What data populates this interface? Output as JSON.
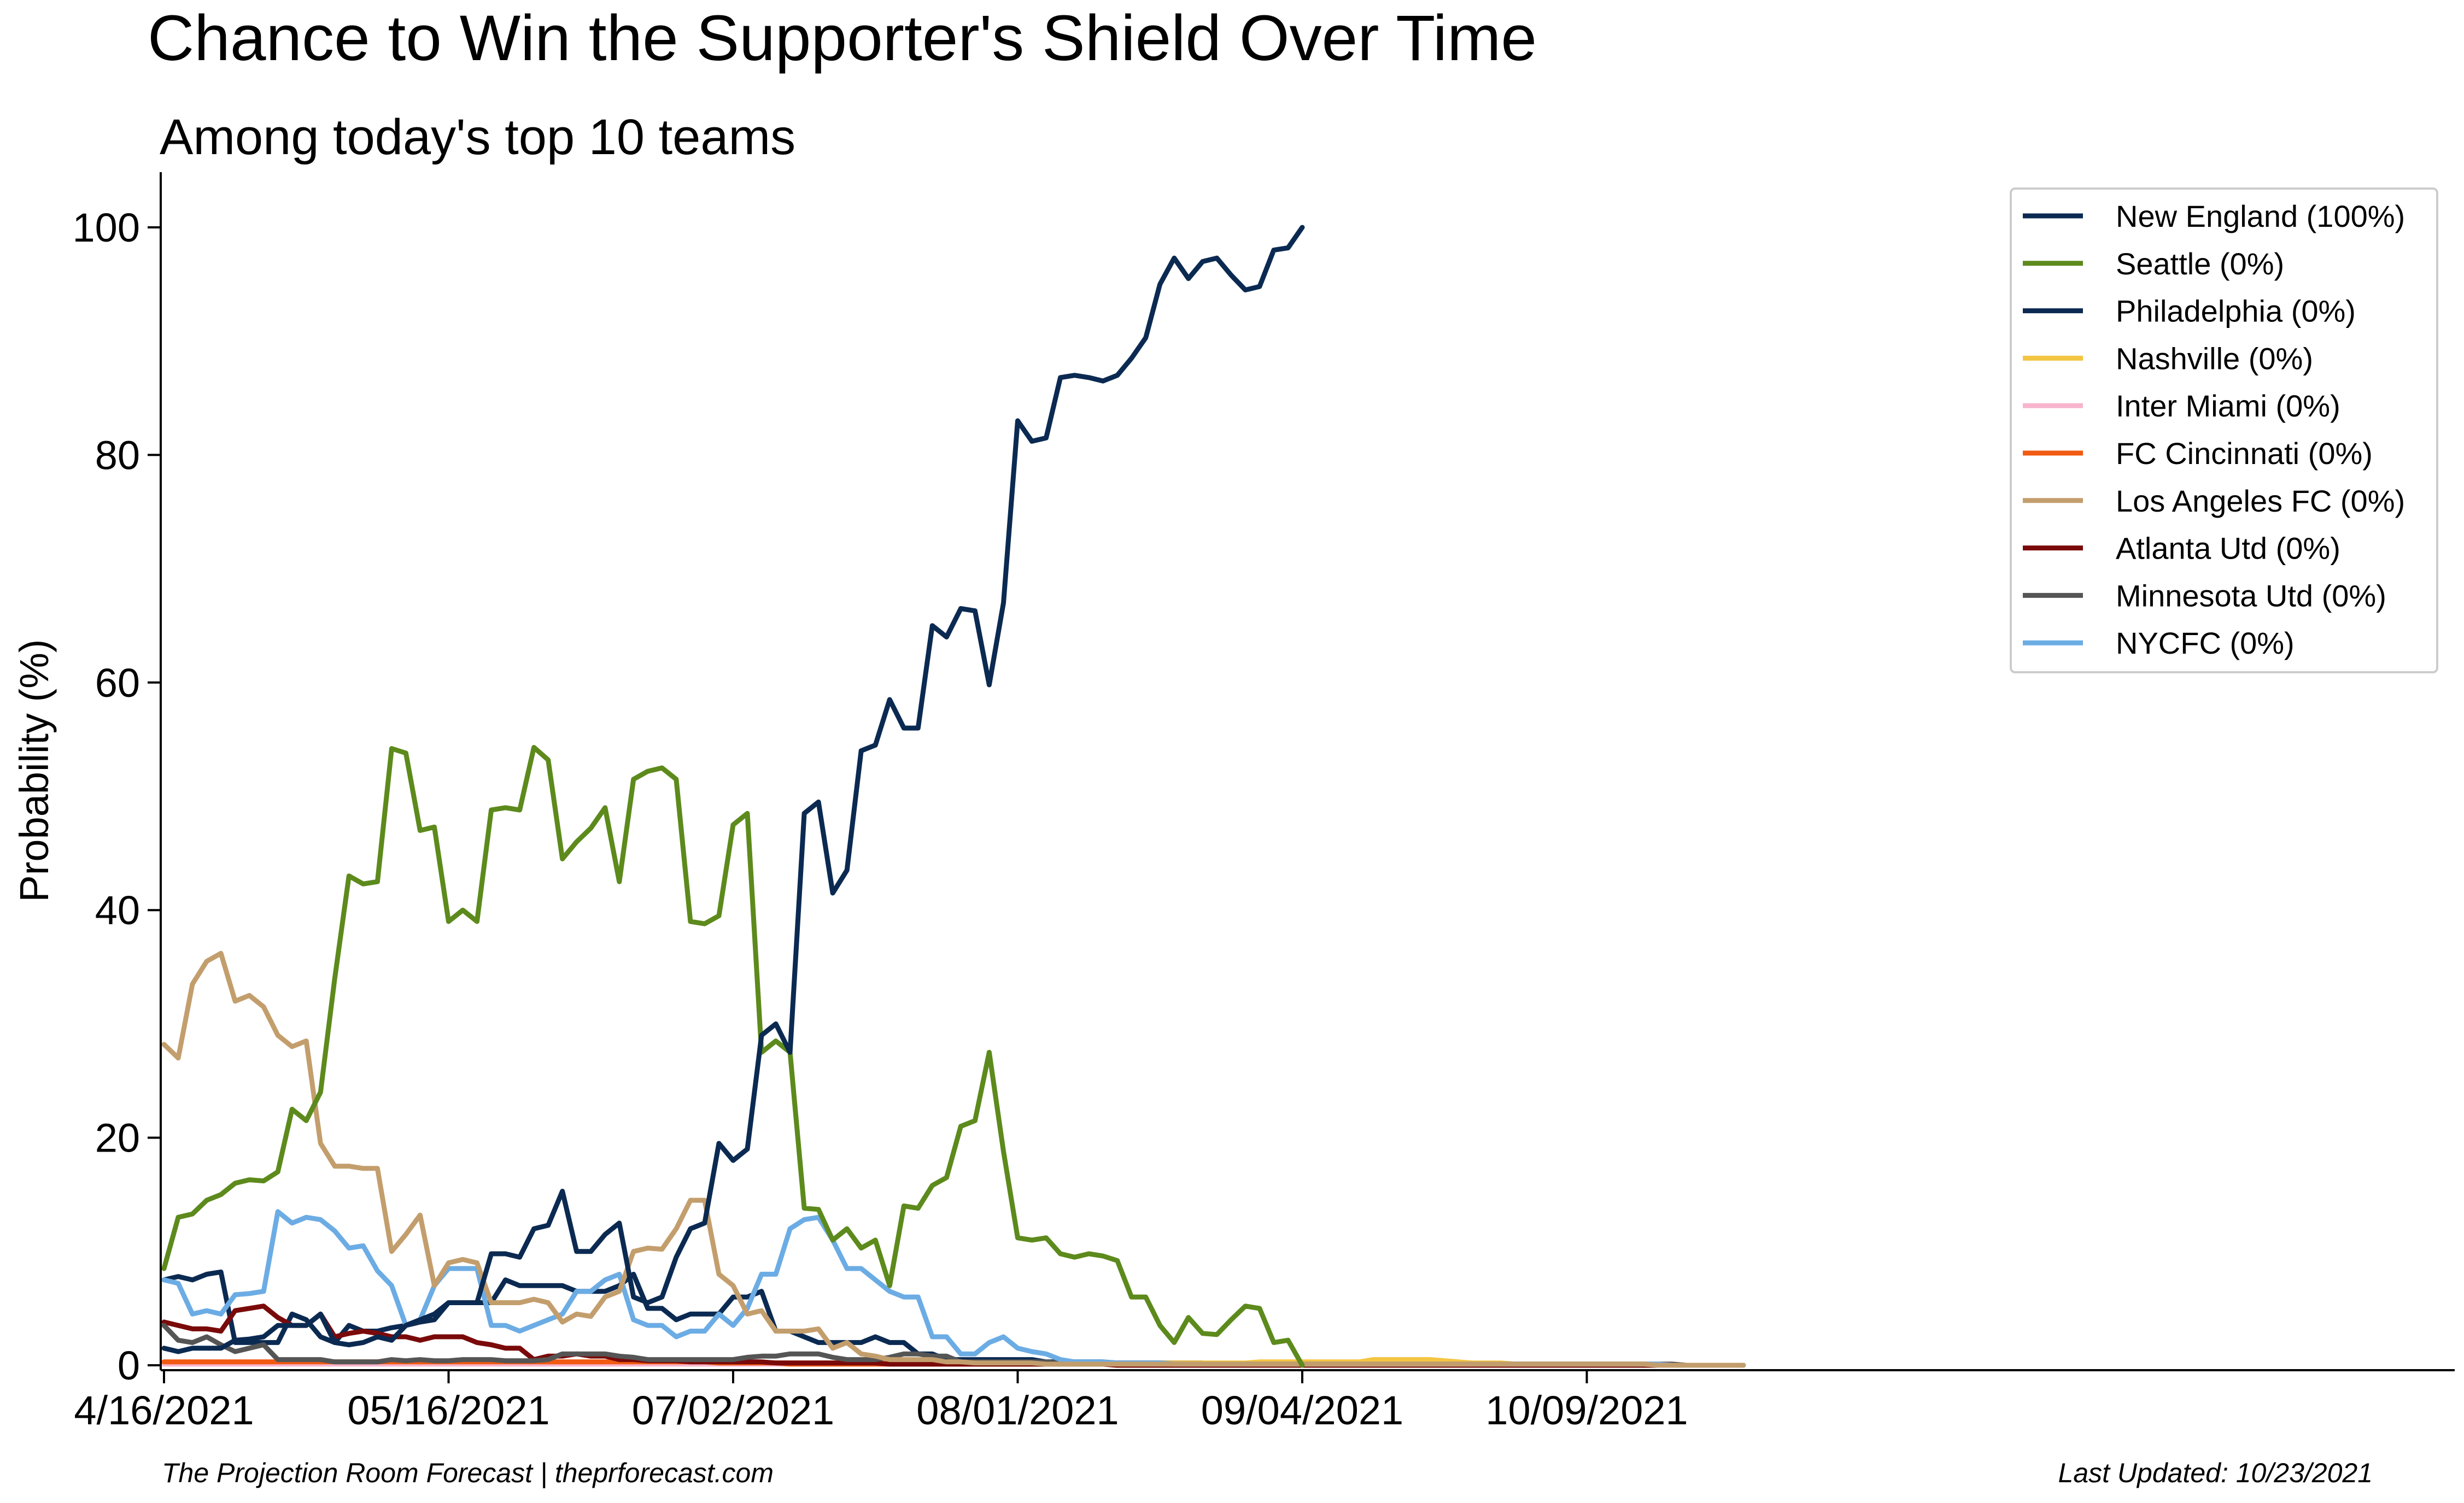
{
  "title": "Chance to Win the Supporter's Shield Over Time",
  "subtitle": "Among today's top 10 teams",
  "footer_left": "The Projection Room Forecast | theprforecast.com",
  "footer_right": "Last Updated: 10/23/2021",
  "chart_data": {
    "type": "line",
    "ylabel": "Probability (%)",
    "xlabel": "",
    "ylim": [
      0,
      105
    ],
    "y_ticks": [
      0,
      20,
      40,
      60,
      80,
      100
    ],
    "x_index_range": [
      0,
      161
    ],
    "x_ticks": [
      {
        "index": 0,
        "label": "4/16/2021"
      },
      {
        "index": 20,
        "label": "05/16/2021"
      },
      {
        "index": 40,
        "label": "07/02/2021"
      },
      {
        "index": 60,
        "label": "08/01/2021"
      },
      {
        "index": 80,
        "label": "09/04/2021"
      },
      {
        "index": 100,
        "label": "10/09/2021"
      }
    ],
    "grid": false,
    "legend_position": "top-right",
    "series": [
      {
        "name": "Philadelphia (0%)",
        "color": "#0b2a52",
        "values": [
          7.5,
          7.8,
          7.5,
          8,
          8.2,
          2,
          2,
          2,
          2,
          4.5,
          4,
          2.5,
          2,
          3.5,
          3,
          3,
          3.3,
          3.5,
          3.8,
          4,
          5.5,
          5.5,
          5.5,
          5.5,
          7.5,
          7,
          7,
          7,
          7,
          6.5,
          6.5,
          6.5,
          7,
          8,
          5,
          5,
          4,
          4.5,
          4.5,
          4.5,
          6,
          6,
          6.5,
          3,
          3,
          2.5,
          2,
          2,
          2,
          2,
          2.5,
          2,
          2,
          1,
          1,
          0.5,
          0.5,
          0.5,
          0.5,
          0.5,
          0.5,
          0.5,
          0.3,
          0.3,
          0.3,
          0.3,
          0.3,
          0.2,
          0.2,
          0.2,
          0.2,
          0.2,
          0.2,
          0.2,
          0.1,
          0.1,
          0.1,
          0.1,
          0.1,
          0.1,
          0.1,
          0.1,
          0.1,
          0.1,
          0.1,
          0.1,
          0.1,
          0.1,
          0.1,
          0.1,
          0.1,
          0.1,
          0.1,
          0.1,
          0.1,
          0.1,
          0.1,
          0.1,
          0.1,
          0.1,
          0.1,
          0.1,
          0.1,
          0.1,
          0.1,
          0,
          0,
          0,
          0,
          0
        ]
      },
      {
        "name": "Nashville (0%)",
        "color": "#f4c542",
        "values": [
          0.2,
          0.2,
          0.2,
          0.2,
          0.2,
          0.2,
          0.2,
          0.2,
          0.2,
          0.2,
          0.2,
          0.2,
          0.2,
          0.2,
          0.2,
          0.2,
          0.2,
          0.2,
          0.2,
          0.2,
          0.2,
          0.2,
          0.2,
          0.2,
          0.2,
          0.2,
          0.2,
          0.2,
          0.2,
          0.2,
          0.2,
          0.2,
          0.2,
          0.2,
          0.2,
          0.2,
          0.2,
          0.2,
          0.2,
          0.2,
          0.2,
          0.2,
          0.2,
          0.2,
          0.2,
          0.2,
          0.2,
          0.2,
          0.2,
          0.2,
          0.2,
          0.2,
          0.2,
          0.2,
          0.2,
          0.2,
          0.2,
          0.2,
          0.2,
          0.2,
          0.2,
          0.2,
          0.2,
          0.2,
          0.2,
          0.2,
          0.2,
          0.2,
          0.2,
          0.2,
          0.2,
          0.2,
          0.2,
          0.2,
          0.2,
          0.2,
          0.2,
          0.3,
          0.3,
          0.3,
          0.3,
          0.3,
          0.3,
          0.3,
          0.3,
          0.5,
          0.5,
          0.5,
          0.5,
          0.5,
          0.4,
          0.3,
          0.2,
          0.2,
          0.2,
          0.1,
          0.1,
          0.1,
          0.1,
          0.1,
          0.1,
          0.1,
          0.1,
          0.1,
          0.1,
          0.1,
          0.1,
          0,
          0,
          0,
          0,
          0
        ]
      },
      {
        "name": "Inter Miami (0%)",
        "color": "#f7b5cd",
        "values": [
          0.1,
          0.1,
          0.1,
          0.1,
          0.1,
          0.1,
          0.1,
          0.1,
          0.1,
          0.1,
          0.1,
          0.1,
          0.1,
          0.1,
          0.1,
          0.1,
          0.1,
          0.1,
          0.1,
          0.1,
          0.1,
          0.1,
          0.1,
          0.1,
          0.1,
          0.1,
          0.1,
          0.1,
          0.1,
          0.1,
          0.1,
          0.1,
          0.1,
          0.1,
          0.1,
          0.1,
          0.1,
          0.1,
          0.1,
          0.1,
          0.1,
          0.1,
          0.1,
          0.1,
          0.1,
          0.1,
          0.1,
          0.1,
          0.1,
          0.1,
          0.1,
          0.1,
          0.1,
          0.1,
          0.1,
          0.1,
          0.1,
          0.1,
          0.1,
          0.1,
          0.1,
          0.1,
          0.1,
          0.1,
          0.1,
          0.1,
          0.1,
          0.1,
          0.1,
          0.1,
          0.1,
          0.1,
          0.1,
          0.1,
          0.1,
          0.1,
          0.1,
          0.1,
          0.1,
          0.1,
          0.1,
          0.1,
          0.1,
          0.1,
          0.1,
          0.1,
          0.1,
          0.1,
          0.1,
          0.1,
          0.1,
          0.1,
          0.1,
          0.1,
          0.1,
          0.1,
          0.1,
          0.1,
          0.1,
          0.1,
          0.1,
          0.1,
          0.1,
          0.1,
          0.1,
          0.1,
          0.1,
          0,
          0,
          0,
          0,
          0
        ]
      },
      {
        "name": "FC Cincinnati (0%)",
        "color": "#f05a12",
        "values": [
          0.3,
          0.3,
          0.3,
          0.3,
          0.3,
          0.3,
          0.3,
          0.3,
          0.3,
          0.3,
          0.3,
          0.3,
          0.3,
          0.3,
          0.3,
          0.3,
          0.3,
          0.3,
          0.3,
          0.3,
          0.3,
          0.3,
          0.3,
          0.3,
          0.3,
          0.3,
          0.3,
          0.3,
          0.3,
          0.3,
          0.3,
          0.3,
          0.3,
          0.3,
          0.3,
          0.3,
          0.3,
          0.3,
          0.3,
          0.2,
          0.2,
          0.2,
          0.2,
          0.2,
          0.1,
          0.1,
          0.1,
          0.1,
          0.1,
          0.1,
          0.1,
          0.1,
          0.1,
          0.1,
          0.1,
          0.1,
          0.1,
          0.1,
          0.1,
          0.1,
          0.1,
          0.1,
          0.1,
          0.1,
          0.1,
          0.1,
          0.1,
          0,
          0,
          0,
          0,
          0,
          0,
          0,
          0,
          0,
          0,
          0,
          0,
          0,
          0,
          0,
          0,
          0,
          0,
          0,
          0,
          0,
          0,
          0,
          0,
          0,
          0,
          0,
          0,
          0,
          0,
          0,
          0,
          0,
          0,
          0,
          0,
          0,
          0,
          0,
          0,
          0,
          0,
          0,
          0,
          0
        ]
      },
      {
        "name": "Atlanta Utd (0%)",
        "color": "#7a0a0a",
        "values": [
          3.8,
          3.5,
          3.2,
          3.2,
          3,
          4.8,
          5,
          5.2,
          4.2,
          3.5,
          3.5,
          4.5,
          2.5,
          2.8,
          3,
          2.8,
          2.5,
          2.5,
          2.2,
          2.5,
          2.5,
          2.5,
          2,
          1.8,
          1.5,
          1.5,
          0.5,
          0.8,
          0.8,
          1,
          0.8,
          0.8,
          0.5,
          0.5,
          0.4,
          0.4,
          0.4,
          0.3,
          0.3,
          0.3,
          0.3,
          0.3,
          0.3,
          0.2,
          0.2,
          0.2,
          0.2,
          0.2,
          0.2,
          0.2,
          0.2,
          0.1,
          0.1,
          0.1,
          0.1,
          0.1,
          0.1,
          0.1,
          0.1,
          0.1,
          0.1,
          0.1,
          0.1,
          0.1,
          0.1,
          0.1,
          0.1,
          0,
          0,
          0,
          0,
          0,
          0,
          0,
          0,
          0,
          0,
          0,
          0,
          0,
          0,
          0,
          0,
          0,
          0,
          0,
          0,
          0,
          0,
          0,
          0,
          0,
          0,
          0,
          0,
          0,
          0,
          0,
          0,
          0,
          0,
          0,
          0,
          0,
          0,
          0,
          0,
          0,
          0,
          0,
          0,
          0
        ]
      },
      {
        "name": "Minnesota Utd (0%)",
        "color": "#555555",
        "values": [
          3.5,
          2.2,
          2.0,
          2.5,
          1.8,
          1.2,
          1.5,
          1.8,
          0.5,
          0.5,
          0.5,
          0.5,
          0.3,
          0.3,
          0.3,
          0.3,
          0.5,
          0.4,
          0.5,
          0.4,
          0.4,
          0.5,
          0.5,
          0.5,
          0.4,
          0.4,
          0.4,
          0.5,
          1,
          1,
          1,
          1,
          0.8,
          0.7,
          0.5,
          0.5,
          0.5,
          0.5,
          0.5,
          0.5,
          0.5,
          0.7,
          0.8,
          0.8,
          1,
          1,
          1,
          0.7,
          0.5,
          0.5,
          0.5,
          0.7,
          1,
          1,
          0.8,
          0.8,
          0.3,
          0.3,
          0.3,
          0.3,
          0.3,
          0.3,
          0.3,
          0.2,
          0.2,
          0.2,
          0.2,
          0.2,
          0.2,
          0.2,
          0.2,
          0.1,
          0.1,
          0.1,
          0.1,
          0.1,
          0.1,
          0.1,
          0.1,
          0.1,
          0.1,
          0.1,
          0.1,
          0.1,
          0.1,
          0.1,
          0.1,
          0.1,
          0.1,
          0.1,
          0.1,
          0.1,
          0.1,
          0.1,
          0.1,
          0.1,
          0.1,
          0.1,
          0.1,
          0.1,
          0.1,
          0.1,
          0.1,
          0.1,
          0.1,
          0.1,
          0.1,
          0,
          0,
          0,
          0,
          0
        ]
      },
      {
        "name": "NYCFC (0%)",
        "color": "#6cace4",
        "values": [
          7.5,
          7.2,
          4.5,
          4.8,
          4.5,
          6.2,
          6.3,
          6.5,
          13.5,
          12.5,
          13,
          12.8,
          11.8,
          10.3,
          10.5,
          8.3,
          7,
          3.5,
          4,
          7,
          8.5,
          8.5,
          8.5,
          3.5,
          3.5,
          3,
          3.5,
          4,
          4.5,
          6.5,
          6.5,
          7.5,
          8,
          4,
          3.5,
          3.5,
          2.5,
          3,
          3,
          4.5,
          3.5,
          5,
          8,
          8,
          12,
          12.8,
          13,
          11,
          8.5,
          8.5,
          7.5,
          6.5,
          6,
          6,
          2.5,
          2.5,
          1,
          1,
          2,
          2.5,
          1.5,
          1.2,
          1,
          0.5,
          0.3,
          0.3,
          0.3,
          0.2,
          0.2,
          0.2,
          0.2,
          0.1,
          0.1,
          0.1,
          0.1,
          0.1,
          0.1,
          0.1,
          0.1,
          0.1,
          0.1,
          0.1,
          0.1,
          0.1,
          0.1,
          0.1,
          0.1,
          0.1,
          0.1,
          0.1,
          0.1,
          0.1,
          0.1,
          0.1,
          0.1,
          0.1,
          0.1,
          0.1,
          0.1,
          0.1,
          0.1,
          0.1,
          0.1,
          0.1,
          0.1,
          0.1,
          0,
          0,
          0,
          0,
          0,
          0
        ]
      },
      {
        "name": "Los Angeles FC (0%)",
        "color": "#c39e6d",
        "values": [
          28.2,
          27,
          33.5,
          35.5,
          36.2,
          32,
          32.5,
          31.5,
          29,
          28,
          28.5,
          19.5,
          17.5,
          17.5,
          17.3,
          17.3,
          10,
          11.5,
          13.2,
          7,
          9,
          9.3,
          9,
          5.5,
          5.5,
          5.5,
          5.8,
          5.5,
          3.8,
          4.5,
          4.3,
          6,
          6.5,
          10,
          10.3,
          10.2,
          12,
          14.5,
          14.5,
          8,
          7,
          4.5,
          4.8,
          3,
          3,
          3,
          3.2,
          1.5,
          2,
          1,
          0.8,
          0.5,
          0.5,
          0.5,
          0.5,
          0.3,
          0.3,
          0.2,
          0.2,
          0.2,
          0.2,
          0.2,
          0.1,
          0.1,
          0.1,
          0.1,
          0.1,
          0.1,
          0.1,
          0.1,
          0.1,
          0.1,
          0.1,
          0.1,
          0.1,
          0.1,
          0.1,
          0.1,
          0.1,
          0.1,
          0.1,
          0.1,
          0.1,
          0.1,
          0.1,
          0.1,
          0.1,
          0.1,
          0.1,
          0.1,
          0.1,
          0.1,
          0.1,
          0.1,
          0.1,
          0.1,
          0.1,
          0.1,
          0.1,
          0.1,
          0.1,
          0.1,
          0.1,
          0.1,
          0.1,
          0,
          0,
          0,
          0,
          0,
          0,
          0
        ]
      },
      {
        "name": "Seattle (0%)",
        "color": "#5d8a1c",
        "values": [
          8.5,
          13,
          13.3,
          14.5,
          15,
          16,
          16.3,
          16.2,
          17,
          22.5,
          21.5,
          24,
          34,
          43,
          42.3,
          42.5,
          54.2,
          53.8,
          47,
          47.3,
          39,
          40,
          39,
          48.8,
          49,
          48.8,
          54.3,
          53.2,
          44.5,
          46,
          47.2,
          49,
          42.5,
          51.5,
          52.2,
          52.5,
          51.5,
          39,
          38.8,
          39.5,
          47.5,
          48.5,
          27.5,
          28.5,
          27.5,
          13.8,
          13.7,
          11,
          12,
          10.3,
          11,
          7,
          14,
          13.8,
          15.8,
          16.5,
          21,
          21.5,
          27.5,
          18.8,
          11.2,
          11,
          11.2,
          9.8,
          9.5,
          9.8,
          9.6,
          9.2,
          6,
          6,
          3.5,
          2,
          4.2,
          2.8,
          2.7,
          4,
          5.2,
          5,
          2,
          2.2,
          0
        ]
      },
      {
        "name": "New England (100%)",
        "color": "#0b2a52",
        "values": [
          1.5,
          1.2,
          1.5,
          1.5,
          1.5,
          2.2,
          2.3,
          2.5,
          3.5,
          3.5,
          3.5,
          4.5,
          2,
          1.8,
          2,
          2.5,
          2.2,
          3.5,
          4,
          4.5,
          5.5,
          5.5,
          5.5,
          9.8,
          9.8,
          9.5,
          12,
          12.3,
          15.3,
          10,
          10,
          11.5,
          12.5,
          6,
          5.5,
          6,
          9.5,
          12,
          12.5,
          19.5,
          18,
          19,
          29,
          30,
          27.5,
          48.5,
          49.5,
          41.5,
          43.5,
          54,
          54.5,
          58.5,
          56,
          56,
          65,
          64,
          66.5,
          66.3,
          59.8,
          67,
          83,
          81.2,
          81.5,
          86.8,
          87,
          86.8,
          86.5,
          87,
          88.5,
          90.3,
          95,
          97.3,
          95.5,
          97,
          97.3,
          95.8,
          94.5,
          94.8,
          98,
          98.2,
          100
        ]
      }
    ]
  }
}
